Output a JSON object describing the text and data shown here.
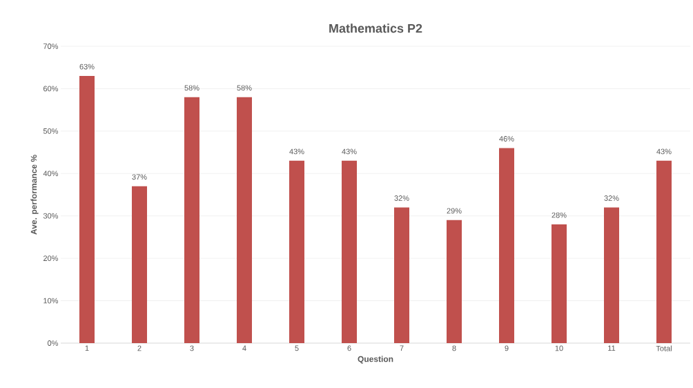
{
  "chart_data": {
    "type": "bar",
    "title": "Mathematics P2",
    "xlabel": "Question",
    "ylabel": "Ave. performance %",
    "categories": [
      "1",
      "2",
      "3",
      "4",
      "5",
      "6",
      "7",
      "8",
      "9",
      "10",
      "11",
      "Total"
    ],
    "values": [
      63,
      37,
      58,
      58,
      43,
      43,
      32,
      29,
      46,
      28,
      32,
      43
    ],
    "value_labels": [
      "63%",
      "37%",
      "58%",
      "58%",
      "43%",
      "43%",
      "32%",
      "29%",
      "46%",
      "28%",
      "32%",
      "43%"
    ],
    "color": "#c0504d",
    "ylim": [
      0,
      70
    ],
    "yticks": [
      {
        "value": 0,
        "label": "0%"
      },
      {
        "value": 10,
        "label": "10%"
      },
      {
        "value": 20,
        "label": "20%"
      },
      {
        "value": 30,
        "label": "30%"
      },
      {
        "value": 40,
        "label": "40%"
      },
      {
        "value": 50,
        "label": "50%"
      },
      {
        "value": 60,
        "label": "60%"
      },
      {
        "value": 70,
        "label": "70%"
      }
    ],
    "grid": "y"
  }
}
